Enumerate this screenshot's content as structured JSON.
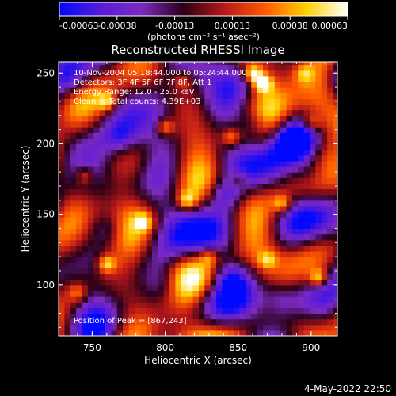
{
  "chart_data": {
    "type": "heatmap",
    "title": "Reconstructed RHESSI Image",
    "xlabel": "Heliocentric X (arcsec)",
    "ylabel": "Heliocentric Y (arcsec)",
    "xlim": [
      727,
      918
    ],
    "ylim": [
      64,
      258
    ],
    "x_ticks": [
      "750",
      "800",
      "850",
      "900"
    ],
    "y_ticks": [
      "100",
      "150",
      "200",
      "250"
    ],
    "colorbar": {
      "range": [
        -0.00063,
        0.00063
      ],
      "ticks": [
        "-0.00063",
        "-0.00038",
        "-0.00013",
        "0.00013",
        "0.00038",
        "0.00063"
      ],
      "unit_label": "(photons cm⁻² s⁻¹ asec⁻²)",
      "colors": [
        "#0008ff",
        "#5a1bd8",
        "#7a2bc0",
        "#2a0018",
        "#b81818",
        "#ff5a00",
        "#ffd000",
        "#ffffff"
      ]
    },
    "annotations": [
      "10-Nov-2004 05:18:44.000 to 05:24:44.000",
      "Detectors: 3F 4F 5F 6F 7F 8F, Att 1",
      "Energy Range: 12.0 - 25.0 keV",
      "Clean     Total counts: 4.39E+03"
    ],
    "peak_label": "Position of Peak = [867,243]",
    "peak": [
      867,
      243
    ],
    "hot_spots": [
      {
        "x": 867,
        "y": 243,
        "v": 0.00063
      },
      {
        "x": 860,
        "y": 250,
        "v": 0.00055
      },
      {
        "x": 905,
        "y": 105,
        "v": 0.0005
      },
      {
        "x": 760,
        "y": 115,
        "v": 0.00045
      },
      {
        "x": 800,
        "y": 212,
        "v": 0.00042
      },
      {
        "x": 815,
        "y": 160,
        "v": 0.0004
      },
      {
        "x": 880,
        "y": 158,
        "v": 0.00038
      },
      {
        "x": 760,
        "y": 230,
        "v": 0.00036
      },
      {
        "x": 785,
        "y": 145,
        "v": 0.00034
      },
      {
        "x": 845,
        "y": 205,
        "v": 0.00033
      },
      {
        "x": 745,
        "y": 178,
        "v": 0.0003
      },
      {
        "x": 900,
        "y": 215,
        "v": 0.0003
      },
      {
        "x": 830,
        "y": 120,
        "v": 0.00028
      },
      {
        "x": 870,
        "y": 118,
        "v": 0.00028
      },
      {
        "x": 740,
        "y": 95,
        "v": 0.00026
      },
      {
        "x": 812,
        "y": 245,
        "v": 0.00025
      },
      {
        "x": 850,
        "y": 175,
        "v": 0.00024
      },
      {
        "x": 895,
        "y": 250,
        "v": 0.00024
      }
    ],
    "cold_spots": [
      {
        "x": 890,
        "y": 203,
        "v": -0.00063
      },
      {
        "x": 860,
        "y": 215,
        "v": -0.0005
      },
      {
        "x": 840,
        "y": 165,
        "v": -0.00045
      },
      {
        "x": 770,
        "y": 205,
        "v": -0.00042
      },
      {
        "x": 900,
        "y": 180,
        "v": -0.0004
      },
      {
        "x": 845,
        "y": 105,
        "v": -0.00038
      },
      {
        "x": 760,
        "y": 140,
        "v": -0.00036
      },
      {
        "x": 735,
        "y": 245,
        "v": -0.00034
      },
      {
        "x": 880,
        "y": 90,
        "v": -0.00032
      },
      {
        "x": 800,
        "y": 100,
        "v": -0.0003
      }
    ]
  },
  "footer": {
    "timestamp": "4-May-2022 22:50"
  }
}
